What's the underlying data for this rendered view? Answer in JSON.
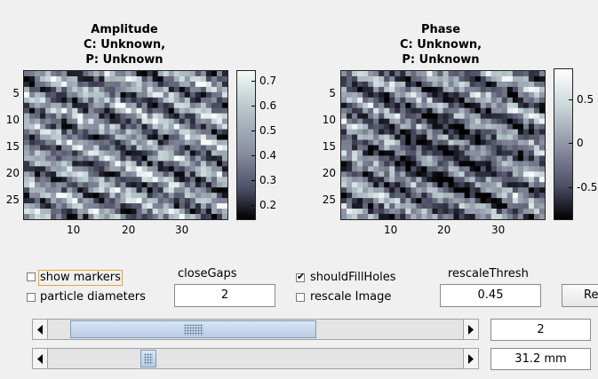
{
  "plots": {
    "amplitude": {
      "title_l1": "Amplitude",
      "title_l2": "C: Unknown,",
      "title_l3": "P: Unknown",
      "y_ticks": [
        "5",
        "10",
        "15",
        "20",
        "25"
      ],
      "x_ticks": [
        "10",
        "20",
        "30"
      ],
      "colorbar_ticks": [
        "0.7",
        "0.6",
        "0.5",
        "0.4",
        "0.3",
        "0.2"
      ]
    },
    "phase": {
      "title_l1": "Phase",
      "title_l2": "C: Unknown,",
      "title_l3": "P: Unknown",
      "y_ticks": [
        "5",
        "10",
        "15",
        "20",
        "25"
      ],
      "x_ticks": [
        "10",
        "20",
        "30"
      ],
      "colorbar_ticks": [
        "0.5",
        "0",
        "-0.5"
      ]
    }
  },
  "controls": {
    "show_markers": {
      "label": "show markers",
      "checked": false
    },
    "particle_diameters": {
      "label": "particle diameters",
      "checked": false
    },
    "close_gaps": {
      "label": "closeGaps",
      "value": "2"
    },
    "should_fill_holes": {
      "label": "shouldFillHoles",
      "checked": true,
      "check_glyph": "✔"
    },
    "rescale_image": {
      "label": "rescale Image",
      "checked": false
    },
    "rescale_thresh": {
      "label": "rescaleThresh",
      "value": "0.45"
    },
    "button_label": "Re",
    "slider1": {
      "value": "2",
      "position": 0.0
    },
    "slider2": {
      "value": "31.2 mm",
      "position": 0.255
    }
  },
  "colors": {
    "focus_outline": "#e8a33a",
    "thumb_border": "#7e98b8"
  }
}
